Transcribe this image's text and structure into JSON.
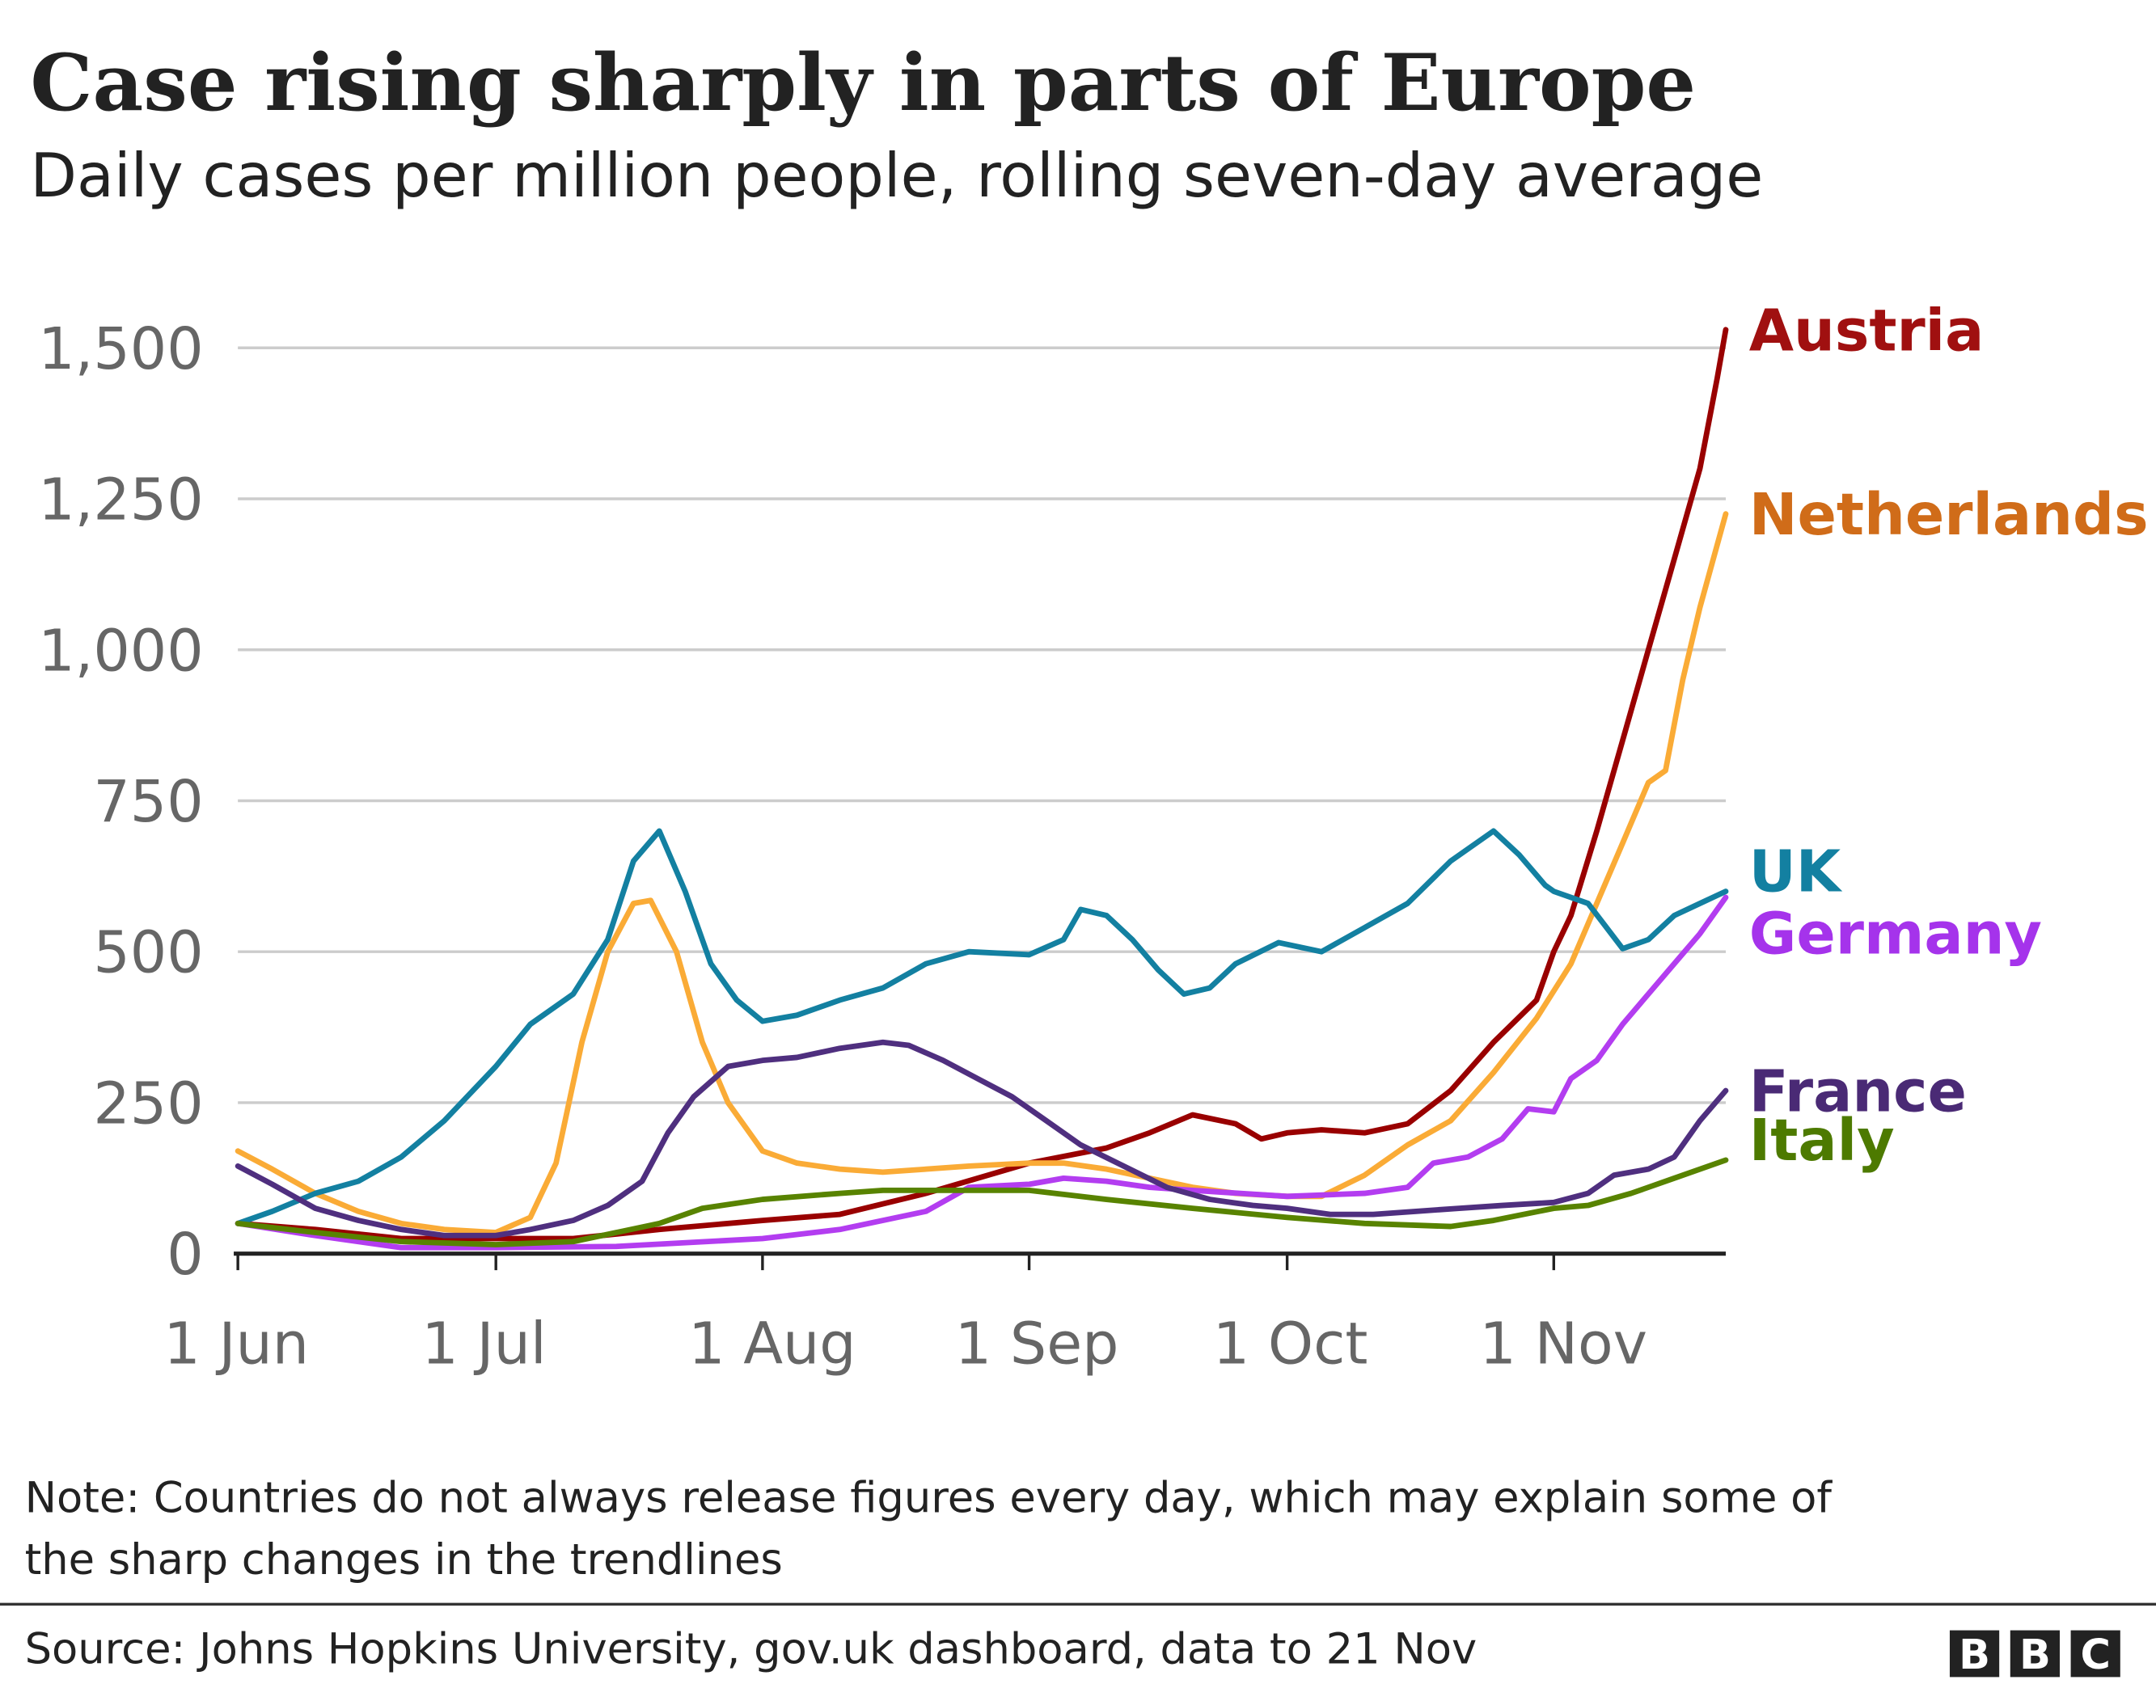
{
  "title": "Case rising sharply in parts of Europe",
  "subtitle": "Daily cases per million people, rolling seven-day average",
  "note_line1": "Note: Countries do not always release figures every day, which may explain some of",
  "note_line2": "the sharp changes in the trendlines",
  "source": "Source: Johns Hopkins University, gov.uk dashboard, data to 21 Nov",
  "logo": [
    "B",
    "B",
    "C"
  ],
  "chart_data": {
    "type": "line",
    "title": "Case rising sharply in parts of Europe",
    "ylim": [
      0,
      1500
    ],
    "yticks": [
      0,
      250,
      500,
      750,
      1000,
      1250,
      1500
    ],
    "ytick_labels": [
      "0",
      "250",
      "500",
      "750",
      "1,000",
      "1,250",
      "1,500"
    ],
    "xticks": [
      "Jun 1",
      "Jul 1",
      "Aug 1",
      "Sep 1",
      "Oct 1",
      "Nov 1"
    ],
    "xtick_labels": [
      "1 Jun",
      "1 Jul",
      "1 Aug",
      "1 Sep",
      "1 Oct",
      "1 Nov"
    ],
    "xlim": [
      "Jun 1",
      "Nov 21"
    ],
    "grid": "horizontal",
    "legend": "direct labels at line ends",
    "series": [
      {
        "name": "Austria",
        "color": "#990000",
        "label_color": "#A01010",
        "x": [
          "Jun 1",
          "Jun 10",
          "Jun 20",
          "Jul 1",
          "Jul 10",
          "Jul 20",
          "Aug 1",
          "Aug 10",
          "Aug 20",
          "Sep 1",
          "Sep 10",
          "Sep 15",
          "Sep 20",
          "Sep 25",
          "Sep 28",
          "Oct 1",
          "Oct 5",
          "Oct 10",
          "Oct 15",
          "Oct 20",
          "Oct 25",
          "Oct 30",
          "Nov 1",
          "Nov 3",
          "Nov 6",
          "Nov 9",
          "Nov 12",
          "Nov 15",
          "Nov 18",
          "Nov 20",
          "Nov 21"
        ],
        "y": [
          50,
          40,
          25,
          25,
          25,
          40,
          55,
          65,
          100,
          150,
          175,
          200,
          230,
          215,
          190,
          200,
          205,
          200,
          215,
          270,
          350,
          420,
          500,
          560,
          700,
          850,
          1000,
          1150,
          1300,
          1450,
          1530
        ]
      },
      {
        "name": "Netherlands",
        "color": "#FAAB36",
        "label_color": "#D06C19",
        "x": [
          "Jun 1",
          "Jun 5",
          "Jun 10",
          "Jun 15",
          "Jun 20",
          "Jun 25",
          "Jul 1",
          "Jul 5",
          "Jul 8",
          "Jul 11",
          "Jul 14",
          "Jul 17",
          "Jul 19",
          "Jul 22",
          "Jul 25",
          "Jul 28",
          "Aug 1",
          "Aug 5",
          "Aug 10",
          "Aug 15",
          "Aug 20",
          "Aug 25",
          "Sep 1",
          "Sep 5",
          "Sep 10",
          "Sep 15",
          "Sep 20",
          "Sep 25",
          "Oct 1",
          "Oct 5",
          "Oct 10",
          "Oct 15",
          "Oct 20",
          "Oct 25",
          "Oct 30",
          "Nov 3",
          "Nov 6",
          "Nov 9",
          "Nov 12",
          "Nov 14",
          "Nov 16",
          "Nov 18",
          "Nov 21"
        ],
        "y": [
          170,
          140,
          100,
          70,
          50,
          40,
          35,
          60,
          150,
          350,
          500,
          580,
          585,
          500,
          350,
          250,
          170,
          150,
          140,
          135,
          140,
          145,
          150,
          150,
          140,
          125,
          110,
          100,
          95,
          95,
          130,
          180,
          220,
          300,
          390,
          480,
          580,
          680,
          780,
          800,
          950,
          1070,
          1225
        ]
      },
      {
        "name": "UK",
        "color": "#1380A1",
        "label_color": "#1380A1",
        "x": [
          "Jun 1",
          "Jun 5",
          "Jun 10",
          "Jun 15",
          "Jun 20",
          "Jun 25",
          "Jul 1",
          "Jul 5",
          "Jul 10",
          "Jul 14",
          "Jul 17",
          "Jul 20",
          "Jul 23",
          "Jul 26",
          "Jul 29",
          "Aug 1",
          "Aug 5",
          "Aug 10",
          "Aug 15",
          "Aug 20",
          "Aug 25",
          "Sep 1",
          "Sep 5",
          "Sep 7",
          "Sep 10",
          "Sep 13",
          "Sep 16",
          "Sep 19",
          "Sep 22",
          "Sep 25",
          "Sep 30",
          "Oct 5",
          "Oct 10",
          "Oct 15",
          "Oct 20",
          "Oct 25",
          "Oct 28",
          "Oct 31",
          "Nov 1",
          "Nov 5",
          "Nov 9",
          "Nov 12",
          "Nov 15",
          "Nov 18",
          "Nov 21"
        ],
        "y": [
          50,
          70,
          100,
          120,
          160,
          220,
          310,
          380,
          430,
          520,
          650,
          700,
          600,
          480,
          420,
          385,
          395,
          420,
          440,
          480,
          500,
          495,
          520,
          570,
          560,
          520,
          470,
          430,
          440,
          480,
          515,
          500,
          540,
          580,
          650,
          700,
          660,
          610,
          600,
          580,
          505,
          520,
          560,
          580,
          600
        ]
      },
      {
        "name": "Germany",
        "color": "#B33DF0",
        "label_color": "#A533EB",
        "x": [
          "Jun 1",
          "Jun 10",
          "Jun 20",
          "Jul 1",
          "Jul 15",
          "Aug 1",
          "Aug 10",
          "Aug 20",
          "Aug 25",
          "Sep 1",
          "Sep 5",
          "Sep 10",
          "Sep 15",
          "Sep 20",
          "Oct 1",
          "Oct 10",
          "Oct 15",
          "Oct 18",
          "Oct 22",
          "Oct 26",
          "Oct 29",
          "Nov 1",
          "Nov 3",
          "Nov 6",
          "Nov 9",
          "Nov 12",
          "Nov 15",
          "Nov 18",
          "Nov 21"
        ],
        "y": [
          50,
          30,
          10,
          10,
          12,
          25,
          40,
          70,
          110,
          115,
          125,
          120,
          110,
          105,
          95,
          100,
          110,
          150,
          160,
          190,
          240,
          235,
          290,
          320,
          380,
          430,
          480,
          530,
          590
        ]
      },
      {
        "name": "France",
        "color": "#4F2F7F",
        "label_color": "#4A2A75",
        "x": [
          "Jun 1",
          "Jun 5",
          "Jun 10",
          "Jun 15",
          "Jun 20",
          "Jun 25",
          "Jul 1",
          "Jul 5",
          "Jul 10",
          "Jul 14",
          "Jul 18",
          "Jul 21",
          "Jul 24",
          "Jul 28",
          "Aug 1",
          "Aug 5",
          "Aug 10",
          "Aug 15",
          "Aug 18",
          "Aug 22",
          "Aug 26",
          "Aug 30",
          "Sep 3",
          "Sep 7",
          "Sep 12",
          "Sep 17",
          "Sep 22",
          "Sep 27",
          "Oct 1",
          "Oct 6",
          "Oct 11",
          "Oct 16",
          "Oct 21",
          "Oct 26",
          "Nov 1",
          "Nov 5",
          "Nov 8",
          "Nov 12",
          "Nov 15",
          "Nov 18",
          "Nov 21"
        ],
        "y": [
          145,
          115,
          75,
          55,
          40,
          30,
          30,
          40,
          55,
          80,
          120,
          200,
          260,
          310,
          320,
          325,
          340,
          350,
          345,
          320,
          290,
          260,
          220,
          180,
          145,
          110,
          90,
          80,
          75,
          65,
          65,
          70,
          75,
          80,
          85,
          100,
          130,
          140,
          160,
          220,
          270
        ]
      },
      {
        "name": "Italy",
        "color": "#588300",
        "label_color": "#4D7A00",
        "x": [
          "Jun 1",
          "Jun 10",
          "Jun 20",
          "Jul 1",
          "Jul 10",
          "Jul 20",
          "Jul 25",
          "Aug 1",
          "Aug 10",
          "Aug 15",
          "Aug 20",
          "Sep 1",
          "Sep 10",
          "Sep 20",
          "Oct 1",
          "Oct 10",
          "Oct 20",
          "Oct 25",
          "Nov 1",
          "Nov 5",
          "Nov 10",
          "Nov 15",
          "Nov 21"
        ],
        "y": [
          50,
          35,
          20,
          15,
          20,
          50,
          75,
          90,
          100,
          105,
          105,
          105,
          90,
          75,
          60,
          50,
          45,
          55,
          75,
          80,
          100,
          125,
          155
        ]
      }
    ]
  }
}
